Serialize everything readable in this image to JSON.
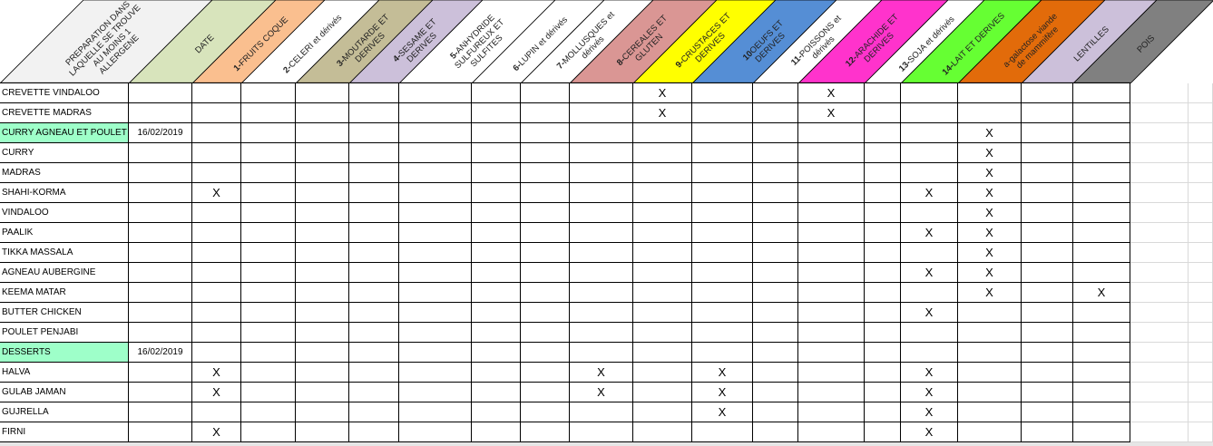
{
  "headers": [
    {
      "key": "preparation",
      "num": "",
      "lines": [
        "PREPARATION DANS",
        "LAQUELLE SE TROUVE",
        "AU MOINS 1",
        "ALLERGENE"
      ],
      "color": "#f2f2f2"
    },
    {
      "key": "date",
      "num": "",
      "lines": [
        "DATE"
      ],
      "color": "#d8e4bc"
    },
    {
      "key": "fruits-coque",
      "num": "1-",
      "lines": [
        "FRUITS COQUE"
      ],
      "color": "#fabf8f"
    },
    {
      "key": "celeri",
      "num": "2-",
      "lines": [
        "CELERI et dérivés"
      ],
      "color": "#ffffff"
    },
    {
      "key": "moutarde",
      "num": "3-",
      "lines": [
        "MOUTARDE ET",
        "DERIVES"
      ],
      "color": "#c4bd97"
    },
    {
      "key": "sesame",
      "num": "4-",
      "lines": [
        "SESAME ET",
        "DERIVES"
      ],
      "color": "#ccc0da"
    },
    {
      "key": "anhydride",
      "num": "5-",
      "lines": [
        "ANHYDRIDE",
        "SULFUREUX ET",
        "SULFITES"
      ],
      "color": "#ffffff"
    },
    {
      "key": "lupin",
      "num": "6-",
      "lines": [
        "LUPIN et dérivés"
      ],
      "color": "#ffffff"
    },
    {
      "key": "mollusques",
      "num": "7-",
      "lines": [
        "MOLLUSQUES et",
        "dérivés"
      ],
      "color": "#ffffff"
    },
    {
      "key": "cereales",
      "num": "8-",
      "lines": [
        "CEREALES ET",
        "GLUTEN"
      ],
      "color": "#da9694"
    },
    {
      "key": "crustaces",
      "num": "9-",
      "lines": [
        "CRUSTACES ET",
        "DERIVES"
      ],
      "color": "#ffff00"
    },
    {
      "key": "oeufs",
      "num": "10",
      "lines": [
        "OEUFS ET",
        "DERIVES"
      ],
      "color": "#558ed5"
    },
    {
      "key": "poissons",
      "num": "11-",
      "lines": [
        "POISSONS et",
        "dérivés"
      ],
      "color": "#ffffff"
    },
    {
      "key": "arachide",
      "num": "12-",
      "lines": [
        "ARACHIDE ET",
        "DERIVES"
      ],
      "color": "#ff33cc"
    },
    {
      "key": "soja",
      "num": "13-",
      "lines": [
        "SOJA et dérivés"
      ],
      "color": "#ffffff"
    },
    {
      "key": "lait",
      "num": "14-",
      "lines": [
        "LAIT ET DERIVES"
      ],
      "color": "#66ff33"
    },
    {
      "key": "alpha-gal",
      "num": "",
      "lines": [
        "a-galactose viande",
        "de mammifère"
      ],
      "color": "#e26b0a"
    },
    {
      "key": "lentilles",
      "num": "",
      "lines": [
        "LENTILLES"
      ],
      "color": "#ccc0da"
    },
    {
      "key": "pois",
      "num": "",
      "lines": [
        "POIS"
      ],
      "color": "#808080"
    }
  ],
  "highlight_color": "#9effc9",
  "rows": [
    {
      "name": "CREVETTE VINDALOO",
      "date": "",
      "highlight": false,
      "cells": [
        "",
        "",
        "",
        "",
        "",
        "",
        "",
        "",
        "X",
        "",
        "",
        "X",
        "",
        "",
        "",
        "",
        ""
      ]
    },
    {
      "name": "CREVETTE MADRAS",
      "date": "",
      "highlight": false,
      "cells": [
        "",
        "",
        "",
        "",
        "",
        "",
        "",
        "",
        "X",
        "",
        "",
        "X",
        "",
        "",
        "",
        "",
        ""
      ]
    },
    {
      "name": "CURRY AGNEAU ET POULET",
      "date": "16/02/2019",
      "highlight": true,
      "cells": [
        "",
        "",
        "",
        "",
        "",
        "",
        "",
        "",
        "",
        "",
        "",
        "",
        "",
        "",
        "X",
        "",
        ""
      ]
    },
    {
      "name": "CURRY",
      "date": "",
      "highlight": false,
      "cells": [
        "",
        "",
        "",
        "",
        "",
        "",
        "",
        "",
        "",
        "",
        "",
        "",
        "",
        "",
        "X",
        "",
        ""
      ]
    },
    {
      "name": "MADRAS",
      "date": "",
      "highlight": false,
      "cells": [
        "",
        "",
        "",
        "",
        "",
        "",
        "",
        "",
        "",
        "",
        "",
        "",
        "",
        "",
        "X",
        "",
        ""
      ]
    },
    {
      "name": "SHAHI-KORMA",
      "date": "",
      "highlight": false,
      "cells": [
        "X",
        "",
        "",
        "",
        "",
        "",
        "",
        "",
        "",
        "",
        "",
        "",
        "",
        "X",
        "X",
        "",
        ""
      ]
    },
    {
      "name": "VINDALOO",
      "date": "",
      "highlight": false,
      "cells": [
        "",
        "",
        "",
        "",
        "",
        "",
        "",
        "",
        "",
        "",
        "",
        "",
        "",
        "",
        "X",
        "",
        ""
      ]
    },
    {
      "name": "PAALIK",
      "date": "",
      "highlight": false,
      "cells": [
        "",
        "",
        "",
        "",
        "",
        "",
        "",
        "",
        "",
        "",
        "",
        "",
        "",
        "X",
        "X",
        "",
        ""
      ]
    },
    {
      "name": "TIKKA MASSALA",
      "date": "",
      "highlight": false,
      "cells": [
        "",
        "",
        "",
        "",
        "",
        "",
        "",
        "",
        "",
        "",
        "",
        "",
        "",
        "",
        "X",
        "",
        ""
      ]
    },
    {
      "name": "AGNEAU AUBERGINE",
      "date": "",
      "highlight": false,
      "cells": [
        "",
        "",
        "",
        "",
        "",
        "",
        "",
        "",
        "",
        "",
        "",
        "",
        "",
        "X",
        "X",
        "",
        ""
      ]
    },
    {
      "name": "KEEMA MATAR",
      "date": "",
      "highlight": false,
      "cells": [
        "",
        "",
        "",
        "",
        "",
        "",
        "",
        "",
        "",
        "",
        "",
        "",
        "",
        "",
        "X",
        "",
        "X"
      ]
    },
    {
      "name": "BUTTER CHICKEN",
      "date": "",
      "highlight": false,
      "cells": [
        "",
        "",
        "",
        "",
        "",
        "",
        "",
        "",
        "",
        "",
        "",
        "",
        "",
        "X",
        "",
        "",
        ""
      ]
    },
    {
      "name": "POULET PENJABI",
      "date": "",
      "highlight": false,
      "cells": [
        "",
        "",
        "",
        "",
        "",
        "",
        "",
        "",
        "",
        "",
        "",
        "",
        "",
        "",
        "",
        "",
        ""
      ]
    },
    {
      "name": "DESSERTS",
      "date": "16/02/2019",
      "highlight": true,
      "cells": [
        "",
        "",
        "",
        "",
        "",
        "",
        "",
        "",
        "",
        "",
        "",
        "",
        "",
        "",
        "",
        "",
        ""
      ]
    },
    {
      "name": "HALVA",
      "date": "",
      "highlight": false,
      "cells": [
        "X",
        "",
        "",
        "",
        "",
        "",
        "",
        "X",
        "",
        "X",
        "",
        "",
        "",
        "X",
        "",
        "",
        ""
      ]
    },
    {
      "name": "GULAB JAMAN",
      "date": "",
      "highlight": false,
      "cells": [
        "X",
        "",
        "",
        "",
        "",
        "",
        "",
        "X",
        "",
        "X",
        "",
        "",
        "",
        "X",
        "",
        "",
        ""
      ]
    },
    {
      "name": "GUJRELLA",
      "date": "",
      "highlight": false,
      "cells": [
        "",
        "",
        "",
        "",
        "",
        "",
        "",
        "",
        "",
        "X",
        "",
        "",
        "",
        "X",
        "",
        "",
        ""
      ]
    },
    {
      "name": "FIRNI",
      "date": "",
      "highlight": false,
      "cells": [
        "X",
        "",
        "",
        "",
        "",
        "",
        "",
        "",
        "",
        "",
        "",
        "",
        "",
        "X",
        "",
        "",
        ""
      ]
    }
  ]
}
